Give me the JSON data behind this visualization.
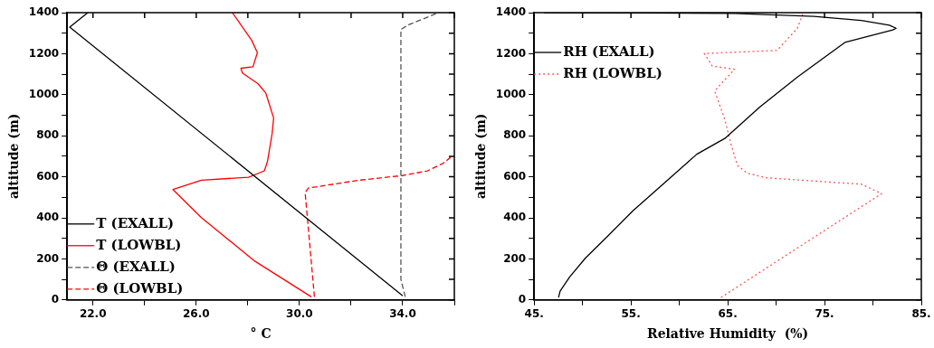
{
  "chart_data": [
    {
      "type": "line",
      "xlabel": "° C",
      "ylabel": "altitude (m)",
      "xlim": [
        21,
        36
      ],
      "xticks": [
        {
          "value": 22,
          "label": "22.0"
        },
        {
          "value": 24,
          "label": null
        },
        {
          "value": 26,
          "label": "26.0"
        },
        {
          "value": 28,
          "label": null
        },
        {
          "value": 30,
          "label": "30.0"
        },
        {
          "value": 32,
          "label": null
        },
        {
          "value": 34,
          "label": "34.0"
        },
        {
          "value": 36,
          "label": null
        }
      ],
      "ylim": [
        0,
        1400
      ],
      "yticks": [
        0,
        {
          "value": 100,
          "label": null
        },
        200,
        {
          "value": 300,
          "label": null
        },
        400,
        {
          "value": 500,
          "label": null
        },
        600,
        {
          "value": 700,
          "label": null
        },
        800,
        {
          "value": 900,
          "label": null
        },
        1000,
        {
          "value": 1100,
          "label": null
        },
        1200,
        {
          "value": 1300,
          "label": null
        },
        1400
      ],
      "legend": "bottom left",
      "marker": "none",
      "grid": false,
      "series": [
        {
          "name": "T (EXALL)",
          "color": "#000000",
          "line_style": "solid",
          "x": [
            34.0,
            21.1,
            21.8
          ],
          "values": [
            20,
            1330,
            1400
          ]
        },
        {
          "name": "T (LOWBL)",
          "color": "#ff0000",
          "line_style": "solid",
          "x": [
            30.46,
            28.27,
            26.2,
            25.1,
            26.2,
            28.03,
            28.64,
            28.76,
            28.94,
            29.0,
            28.7,
            28.4,
            27.79,
            27.73,
            28.2,
            28.37,
            28.15,
            27.4
          ],
          "values": [
            15,
            189,
            401,
            538,
            583,
            598,
            629,
            674,
            810,
            886,
            1007,
            1053,
            1106,
            1129,
            1136,
            1205,
            1265,
            1400
          ]
        },
        {
          "name": "Θ (EXALL)",
          "color": "#555555",
          "line_style": "dashed",
          "x": [
            34.1,
            33.93,
            33.93,
            34.23,
            35.39
          ],
          "values": [
            15,
            100,
            1318,
            1341,
            1400
          ]
        },
        {
          "name": "Θ (LOWBL)",
          "color": "#ff0000",
          "line_style": "dashed",
          "x": [
            30.58,
            30.22,
            30.34,
            32.29,
            33.99,
            34.96,
            35.57,
            35.94
          ],
          "values": [
            15,
            523,
            545,
            583,
            606,
            629,
            666,
            704
          ]
        }
      ]
    },
    {
      "type": "line",
      "xlabel": "Relative Humidity  (%)",
      "ylabel": "altitude (m)",
      "xlim": [
        45,
        85
      ],
      "xticks": [
        {
          "value": 45,
          "label": "45."
        },
        {
          "value": 50,
          "label": null
        },
        {
          "value": 55,
          "label": "55."
        },
        {
          "value": 60,
          "label": null
        },
        {
          "value": 65,
          "label": "65."
        },
        {
          "value": 70,
          "label": null
        },
        {
          "value": 75,
          "label": "75."
        },
        {
          "value": 80,
          "label": null
        },
        {
          "value": 85,
          "label": "85."
        }
      ],
      "ylim": [
        0,
        1400
      ],
      "yticks": [
        0,
        {
          "value": 100,
          "label": null
        },
        200,
        {
          "value": 300,
          "label": null
        },
        400,
        {
          "value": 500,
          "label": null
        },
        600,
        {
          "value": 700,
          "label": null
        },
        800,
        {
          "value": 900,
          "label": null
        },
        1000,
        {
          "value": 1100,
          "label": null
        },
        1200,
        {
          "value": 1300,
          "label": null
        },
        1400
      ],
      "legend": "top left",
      "marker": "none",
      "grid": false,
      "series": [
        {
          "name": "RH (EXALL)",
          "color": "#000000",
          "line_style": "solid",
          "x": [
            47.52,
            47.68,
            48.67,
            50.3,
            52.6,
            55.2,
            58.5,
            61.8,
            64.7,
            68.3,
            72.2,
            77.1,
            82.05,
            82.4,
            81.7,
            78.8,
            73.9,
            65.7,
            55.9,
            46.0
          ],
          "values": [
            12,
            43,
            112,
            204,
            311,
            434,
            572,
            710,
            787,
            940,
            1086,
            1255,
            1316,
            1324,
            1339,
            1362,
            1382,
            1396,
            1399,
            1400
          ]
        },
        {
          "name": "RH (LOWBL)",
          "color": "#ff5555",
          "line_style": "dotted",
          "x": [
            64.3,
            80.9,
            78.8,
            69.0,
            67.0,
            66.0,
            65.36,
            64.7,
            63.66,
            64.05,
            65.7,
            63.4,
            62.58,
            70.1,
            72.2,
            72.8
          ],
          "values": [
            12,
            518,
            564,
            595,
            618,
            656,
            756,
            879,
            1017,
            1040,
            1124,
            1140,
            1201,
            1216,
            1324,
            1400
          ]
        }
      ]
    }
  ]
}
